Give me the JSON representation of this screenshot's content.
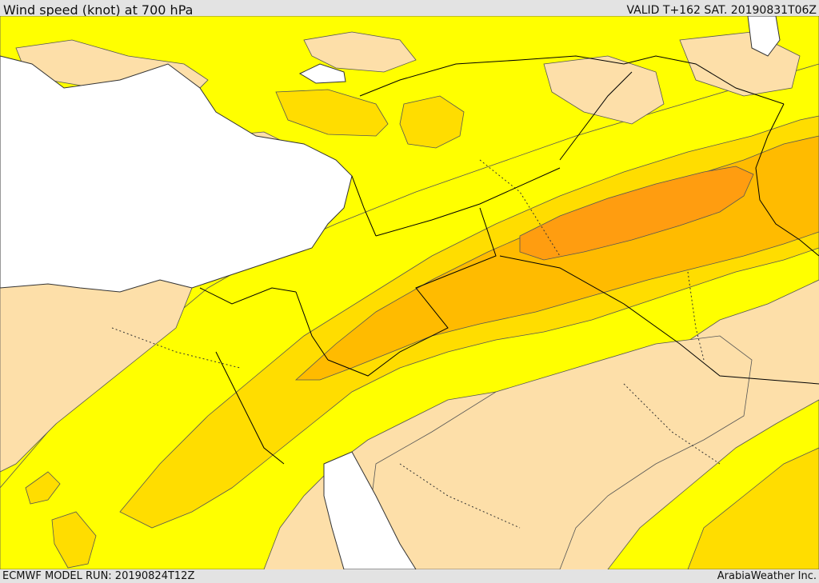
{
  "header": {
    "title": "Wind speed (knot) at 700 hPa",
    "valid_time": "VALID T+162 SAT. 20190831T06Z"
  },
  "footer": {
    "model_run": "ECMWF MODEL RUN: 20190824T12Z",
    "credit": "ArabiaWeather Inc."
  },
  "map": {
    "field": "wind speed",
    "units": "knot",
    "level": "700 hPa",
    "colors": {
      "sea": "#ffffff",
      "band_lowest": "#fddfa9",
      "band_low": "#ffff00",
      "band_mid": "#ffdd00",
      "band_high": "#ffbb00",
      "band_highest": "#ff9d10",
      "contour": "#555555",
      "border": "#000000"
    }
  }
}
